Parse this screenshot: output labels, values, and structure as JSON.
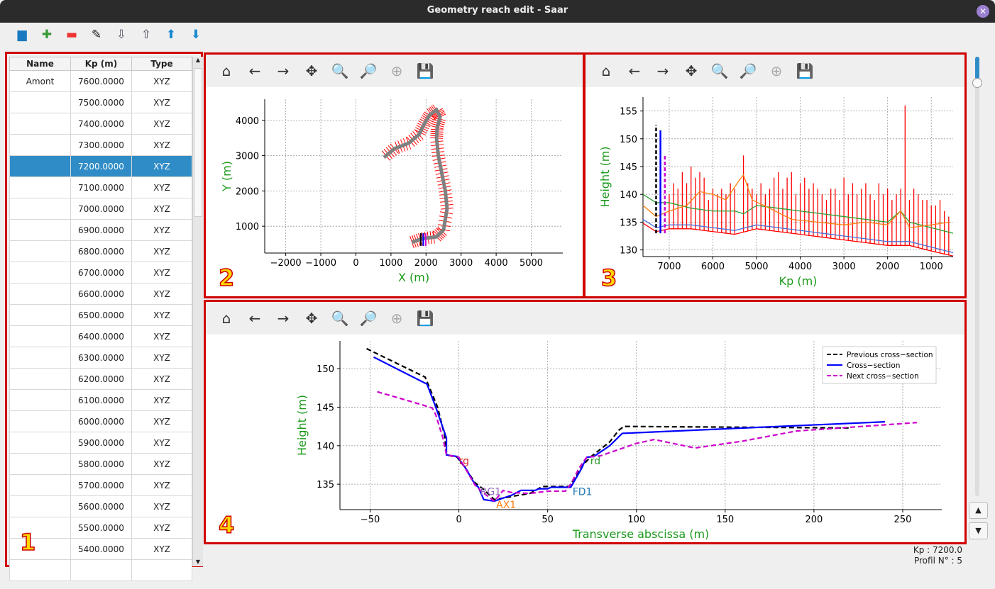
{
  "window": {
    "title": "Geometry reach edit - Saar",
    "close_icon": "close-icon"
  },
  "toolbar": {
    "icons": [
      "folder-open-icon",
      "add-icon",
      "remove-icon",
      "edit-icon",
      "sort-ascending-icon",
      "sort-descending-icon",
      "move-up-icon",
      "move-down-icon"
    ]
  },
  "table": {
    "columns": [
      "Name",
      "Kp (m)",
      "Type"
    ],
    "selected_kp": "7200.0000",
    "rows": [
      [
        "Amont",
        "7600.0000",
        "XYZ"
      ],
      [
        "",
        "7500.0000",
        "XYZ"
      ],
      [
        "",
        "7400.0000",
        "XYZ"
      ],
      [
        "",
        "7300.0000",
        "XYZ"
      ],
      [
        "",
        "7200.0000",
        "XYZ"
      ],
      [
        "",
        "7100.0000",
        "XYZ"
      ],
      [
        "",
        "7000.0000",
        "XYZ"
      ],
      [
        "",
        "6900.0000",
        "XYZ"
      ],
      [
        "",
        "6800.0000",
        "XYZ"
      ],
      [
        "",
        "6700.0000",
        "XYZ"
      ],
      [
        "",
        "6600.0000",
        "XYZ"
      ],
      [
        "",
        "6500.0000",
        "XYZ"
      ],
      [
        "",
        "6400.0000",
        "XYZ"
      ],
      [
        "",
        "6300.0000",
        "XYZ"
      ],
      [
        "",
        "6200.0000",
        "XYZ"
      ],
      [
        "",
        "6100.0000",
        "XYZ"
      ],
      [
        "",
        "6000.0000",
        "XYZ"
      ],
      [
        "",
        "5900.0000",
        "XYZ"
      ],
      [
        "",
        "5800.0000",
        "XYZ"
      ],
      [
        "",
        "5700.0000",
        "XYZ"
      ],
      [
        "",
        "5600.0000",
        "XYZ"
      ],
      [
        "",
        "5500.0000",
        "XYZ"
      ],
      [
        "",
        "5400.0000",
        "XYZ"
      ],
      [
        "",
        "",
        ""
      ]
    ]
  },
  "panel_numbers": [
    "1",
    "2",
    "3",
    "4"
  ],
  "status": {
    "kp": "Kp : 7200.0",
    "profile": "Profil N° : 5"
  },
  "chart_data": [
    {
      "type": "line",
      "xlabel": "X (m)",
      "ylabel": "Y (m)",
      "xlim": [
        -2600,
        5900
      ],
      "ylim": [
        240,
        4600
      ],
      "xticks": [
        -2000,
        -1000,
        0,
        1000,
        2000,
        3000,
        4000,
        5000
      ],
      "yticks": [
        1000,
        2000,
        3000,
        4000
      ],
      "grid": true,
      "series": [
        {
          "color": "#808080",
          "x": [
            1600,
            1900,
            2300,
            2500,
            2600,
            2550,
            2450,
            2350,
            2300,
            2320,
            2400,
            2300,
            2100,
            1950,
            1800,
            1500,
            1100,
            800
          ],
          "y": [
            550,
            650,
            700,
            900,
            1500,
            2000,
            2500,
            3000,
            3500,
            3800,
            4100,
            4300,
            4150,
            3900,
            3600,
            3350,
            3200,
            2950
          ]
        }
      ]
    },
    {
      "type": "line",
      "xlabel": "Kp (m)",
      "ylabel": "Height (m)",
      "xlim": [
        7600,
        500
      ],
      "ylim": [
        128.8,
        157.5
      ],
      "xticks": [
        7000,
        6000,
        5000,
        4000,
        3000,
        2000,
        1000
      ],
      "yticks": [
        130,
        135,
        140,
        145,
        150,
        155
      ],
      "grid": true,
      "series": [
        {
          "color": "#2ca02c",
          "x": [
            7600,
            7300,
            7000,
            6500,
            6000,
            5500,
            5300,
            5000,
            4500,
            4000,
            3500,
            3000,
            2500,
            2000,
            1700,
            1500,
            1000,
            500
          ],
          "y": [
            140,
            138.5,
            138.5,
            137.5,
            137,
            137,
            136.5,
            138,
            137.5,
            137,
            136.5,
            136,
            135.5,
            135,
            137,
            135,
            134,
            133
          ]
        },
        {
          "color": "#ff7f0e",
          "x": [
            7600,
            7300,
            7000,
            6600,
            6300,
            6000,
            5700,
            5400,
            5300,
            5100,
            4700,
            4200,
            3600,
            3000,
            2500,
            2000,
            1700,
            1500,
            1000,
            600
          ],
          "y": [
            138,
            136,
            137,
            138,
            140.5,
            140,
            139,
            142.5,
            143.5,
            139,
            137.5,
            135.5,
            135,
            134.5,
            135,
            134.5,
            137,
            134,
            134.5,
            135
          ]
        },
        {
          "color": "#4a6fd8",
          "x": [
            7600,
            7300,
            7000,
            6500,
            6000,
            5500,
            5000,
            4500,
            4000,
            3500,
            3000,
            2500,
            2000,
            1500,
            1000,
            500
          ],
          "y": [
            135.5,
            134,
            134.5,
            134.5,
            134,
            133.5,
            134.5,
            134,
            133.5,
            133,
            132.5,
            132,
            131.5,
            131.5,
            130.5,
            129.5
          ]
        },
        {
          "color": "#ff0000",
          "x": [
            7600,
            7300,
            7000,
            6500,
            6000,
            5500,
            5000,
            4500,
            4000,
            3500,
            3000,
            2500,
            2000,
            1500,
            1000,
            500
          ],
          "y": [
            134.8,
            133.3,
            133.8,
            133.8,
            133.3,
            132.8,
            133.8,
            133.3,
            132.8,
            132.3,
            131.8,
            131.3,
            130.8,
            130.8,
            129.8,
            128.9
          ]
        }
      ],
      "spikes": {
        "color": "#ff0000",
        "x": [
          7000,
          6900,
          6800,
          6700,
          6600,
          6500,
          6400,
          6300,
          6200,
          6100,
          6000,
          5900,
          5800,
          5700,
          5600,
          5500,
          5300,
          5200,
          5100,
          5000,
          4900,
          4800,
          4700,
          4600,
          4500,
          4400,
          4300,
          4200,
          4100,
          4000,
          3900,
          3800,
          3700,
          3600,
          3500,
          3400,
          3300,
          3200,
          3100,
          3000,
          2900,
          2800,
          2700,
          2600,
          2500,
          2400,
          2300,
          2200,
          2100,
          2000,
          1900,
          1800,
          1700,
          1600,
          1500,
          1400,
          1300,
          1200,
          1100,
          1000,
          900,
          800,
          700,
          600
        ],
        "top": [
          140,
          142,
          141,
          144,
          142,
          145,
          143,
          144,
          143,
          139,
          141,
          140,
          141,
          140,
          142,
          141,
          147,
          142,
          141,
          140,
          142,
          140,
          141,
          143,
          144,
          141,
          143,
          144,
          140,
          142,
          143,
          141,
          142,
          141,
          140,
          139,
          141,
          141,
          139,
          143,
          140,
          142,
          140,
          141,
          142,
          140,
          139,
          142,
          140,
          141,
          139,
          140,
          141,
          156,
          139,
          141,
          140,
          139,
          139,
          138,
          138,
          139,
          137,
          136
        ]
      },
      "markers": [
        {
          "name": "previous",
          "color": "#000000",
          "kp": 7300,
          "top": 152.5,
          "dashed": true
        },
        {
          "name": "current",
          "color": "#0000ff",
          "kp": 7200,
          "top": 151.5,
          "dashed": false
        },
        {
          "name": "next",
          "color": "#cc00cc",
          "kp": 7100,
          "top": 147,
          "dashed": true
        }
      ]
    },
    {
      "type": "line",
      "xlabel": "Transverse abscissa (m)",
      "ylabel": "Height (m)",
      "xlim": [
        -67,
        272
      ],
      "ylim": [
        131.7,
        153.6
      ],
      "xticks": [
        -50,
        0,
        50,
        100,
        150,
        200,
        250
      ],
      "yticks": [
        135,
        140,
        145,
        150
      ],
      "grid": true,
      "legend": "top-right",
      "series": [
        {
          "name": "Previous cross-section",
          "color": "#000000",
          "style": "dashed",
          "x": [
            -52,
            -19,
            -12,
            -8,
            -7,
            -1,
            4,
            9,
            13,
            20,
            25,
            32,
            40,
            47,
            62,
            66,
            70,
            74,
            85,
            90,
            93,
            220
          ],
          "y": [
            152.6,
            148.9,
            145,
            141.3,
            138.8,
            138.5,
            137,
            135.2,
            134.5,
            133,
            133.2,
            133.5,
            133.8,
            134.7,
            134.7,
            136,
            137.5,
            138.5,
            140.5,
            142,
            142.5,
            142.3
          ]
        },
        {
          "name": "Cross-section",
          "color": "#0000ff",
          "style": "solid",
          "x": [
            -48,
            -18,
            -13,
            -7,
            -7,
            -1,
            4,
            9,
            11,
            14,
            20,
            30,
            35,
            43,
            45,
            50,
            52,
            63,
            69,
            72,
            76,
            85,
            92,
            240
          ],
          "y": [
            151.5,
            148,
            145,
            141,
            138.8,
            138.6,
            137,
            135,
            134.6,
            133,
            132.8,
            133.6,
            134.2,
            134.2,
            134.4,
            134.4,
            134.6,
            134.6,
            137,
            138.5,
            138.6,
            140,
            141.6,
            143.1
          ]
        },
        {
          "name": "Next cross-section",
          "color": "#cc00cc",
          "style": "dashed",
          "x": [
            -46,
            -25,
            -15,
            -13,
            -9,
            -7,
            0,
            5,
            9,
            13,
            20,
            25,
            30,
            40,
            50,
            60,
            63,
            68,
            72,
            80,
            90,
            100,
            110,
            133,
            160,
            190,
            258
          ],
          "y": [
            147,
            145.6,
            144.9,
            144,
            141,
            138.8,
            138.5,
            136.5,
            134.9,
            134,
            132.8,
            134.2,
            133.9,
            133.8,
            134.1,
            134.1,
            135,
            137.2,
            138.5,
            138.7,
            139.5,
            140.3,
            140.8,
            139.7,
            140.6,
            141.9,
            143
          ]
        }
      ],
      "annotations": [
        {
          "text": "rg",
          "x": 0,
          "y": 137.6,
          "color": "#d62728"
        },
        {
          "text": "rd",
          "x": 74,
          "y": 137.6,
          "color": "#2ca02c"
        },
        {
          "text": "RG1",
          "x": 12,
          "y": 133.6,
          "color": "#9467bd"
        },
        {
          "text": "AX1",
          "x": 21,
          "y": 131.9,
          "color": "#ff7f0e"
        },
        {
          "text": "FD1",
          "x": 64,
          "y": 133.6,
          "color": "#1f77b4"
        }
      ]
    }
  ],
  "mpl_toolbar": [
    "home-icon",
    "back-icon",
    "forward-icon",
    "pan-icon",
    "zoom-icon",
    "zoom-1-icon",
    "zoom-fit-icon",
    "save-icon"
  ]
}
